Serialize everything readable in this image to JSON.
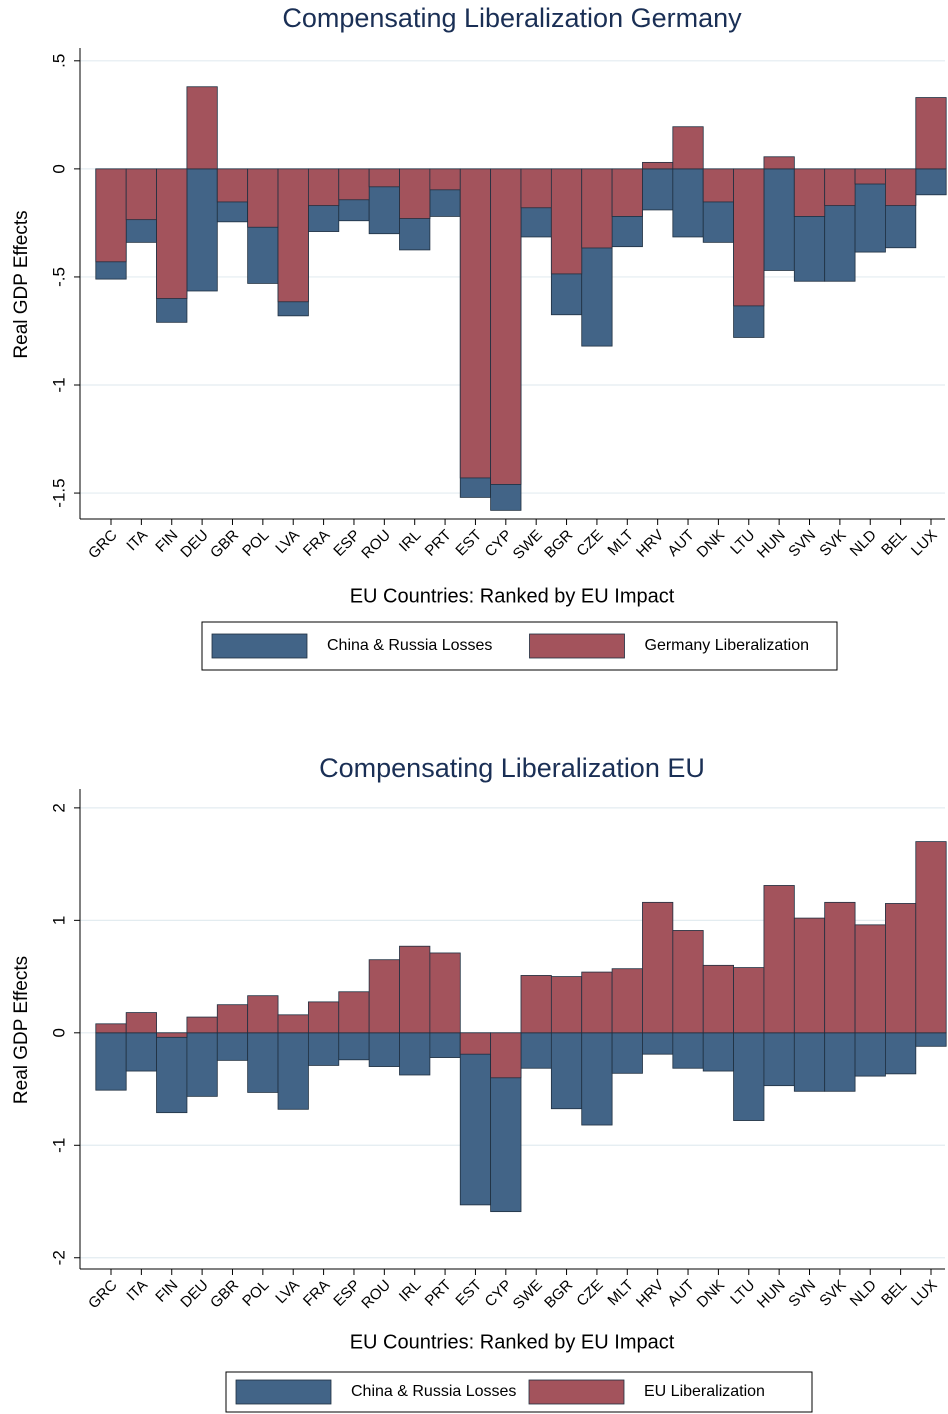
{
  "chart_data": [
    {
      "type": "bar",
      "title": "Compensating Liberalization Germany",
      "x_label": "EU Countries: Ranked by EU Impact",
      "y_label": "Real GDP Effects",
      "categories": [
        "GRC",
        "ITA",
        "FIN",
        "DEU",
        "GBR",
        "POL",
        "LVA",
        "FRA",
        "ESP",
        "ROU",
        "IRL",
        "PRT",
        "EST",
        "CYP",
        "SWE",
        "BGR",
        "CZE",
        "MLT",
        "HRV",
        "AUT",
        "DNK",
        "LTU",
        "HUN",
        "SVN",
        "SVK",
        "NLD",
        "BEL",
        "LUX"
      ],
      "series": [
        {
          "name": "China & Russia Losses",
          "color": "#426487",
          "values": [
            -0.51,
            -0.34,
            -0.71,
            -0.565,
            -0.245,
            -0.53,
            -0.68,
            -0.29,
            -0.24,
            -0.3,
            -0.375,
            -0.22,
            -1.52,
            -1.58,
            -0.315,
            -0.675,
            -0.82,
            -0.36,
            -0.19,
            -0.315,
            -0.34,
            -0.78,
            -0.47,
            -0.52,
            -0.52,
            -0.385,
            -0.365,
            -0.12
          ]
        },
        {
          "name": "Germany Liberalization",
          "color": "#a3535c",
          "values": [
            -0.43,
            -0.235,
            -0.6,
            0.38,
            -0.153,
            -0.27,
            -0.615,
            -0.17,
            -0.143,
            -0.083,
            -0.23,
            -0.097,
            -1.43,
            -1.46,
            -0.18,
            -0.486,
            -0.366,
            -0.22,
            0.03,
            0.195,
            -0.153,
            -0.634,
            0.056,
            -0.22,
            -0.17,
            -0.07,
            -0.17,
            0.33
          ]
        }
      ],
      "ylim": [
        -1.62,
        0.55
      ],
      "yticks": [
        {
          "value": 0.5,
          "label": ".5"
        },
        0,
        {
          "value": -0.5,
          "label": "-.5"
        },
        -1,
        {
          "value": -1.5,
          "label": "-1.5"
        }
      ],
      "grid": true
    },
    {
      "type": "bar",
      "title": "Compensating Liberalization EU",
      "x_label": "EU Countries: Ranked by EU Impact",
      "y_label": "Real GDP Effects",
      "categories": [
        "GRC",
        "ITA",
        "FIN",
        "DEU",
        "GBR",
        "POL",
        "LVA",
        "FRA",
        "ESP",
        "ROU",
        "IRL",
        "PRT",
        "EST",
        "CYP",
        "SWE",
        "BGR",
        "CZE",
        "MLT",
        "HRV",
        "AUT",
        "DNK",
        "LTU",
        "HUN",
        "SVN",
        "SVK",
        "NLD",
        "BEL",
        "LUX"
      ],
      "series": [
        {
          "name": "China & Russia Losses",
          "color": "#426487",
          "values": [
            -0.51,
            -0.34,
            -0.71,
            -0.565,
            -0.245,
            -0.53,
            -0.68,
            -0.29,
            -0.24,
            -0.3,
            -0.375,
            -0.22,
            -1.53,
            -1.59,
            -0.315,
            -0.675,
            -0.82,
            -0.36,
            -0.19,
            -0.315,
            -0.34,
            -0.78,
            -0.47,
            -0.52,
            -0.52,
            -0.385,
            -0.365,
            -0.12
          ]
        },
        {
          "name": "EU Liberalization",
          "color": "#a3535c",
          "values": [
            0.08,
            0.18,
            -0.04,
            0.14,
            0.25,
            0.33,
            0.16,
            0.275,
            0.365,
            0.65,
            0.77,
            0.71,
            -0.19,
            -0.4,
            0.51,
            0.5,
            0.54,
            0.57,
            1.16,
            0.91,
            0.6,
            0.58,
            1.31,
            1.02,
            1.16,
            0.96,
            1.15,
            1.7
          ]
        }
      ],
      "ylim": [
        -2.1,
        2.15
      ],
      "yticks": [
        2,
        1,
        0,
        -1,
        -2
      ],
      "grid": true
    }
  ]
}
